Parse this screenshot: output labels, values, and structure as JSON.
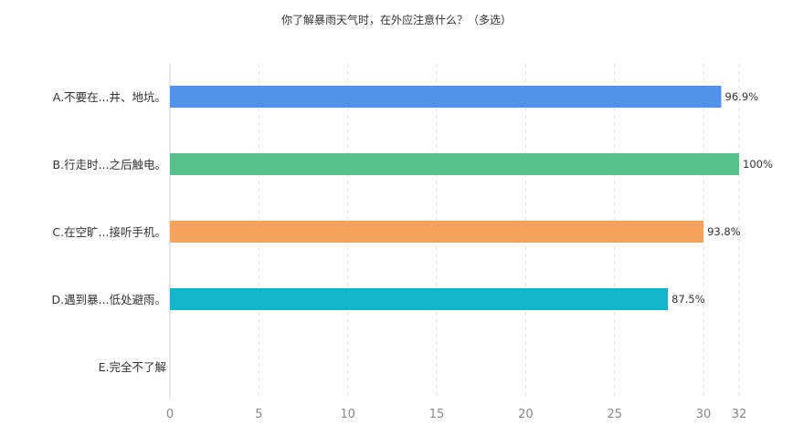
{
  "chart_data": {
    "type": "bar",
    "orientation": "horizontal",
    "title": "你了解暴雨天气时，在外应注意什么？（多选）",
    "xlabel": "",
    "ylabel": "",
    "categories": [
      "A.不要在...井、地坑。",
      "B.行走时...之后触电。",
      "C.在空旷...接听手机。",
      "D.遇到暴...低处避雨。",
      "E.完全不了解"
    ],
    "values": [
      31,
      32,
      30,
      28,
      0
    ],
    "value_labels": [
      "96.9%",
      "100%",
      "93.8%",
      "87.5%",
      ""
    ],
    "colors": [
      "#4f93ec",
      "#58c08a",
      "#f4a25e",
      "#12b5cc",
      "#9b7fe6"
    ],
    "xlim": [
      0,
      32
    ],
    "xticks": [
      0,
      5,
      10,
      15,
      20,
      25,
      30,
      32
    ],
    "grid": true,
    "legend": "none"
  }
}
